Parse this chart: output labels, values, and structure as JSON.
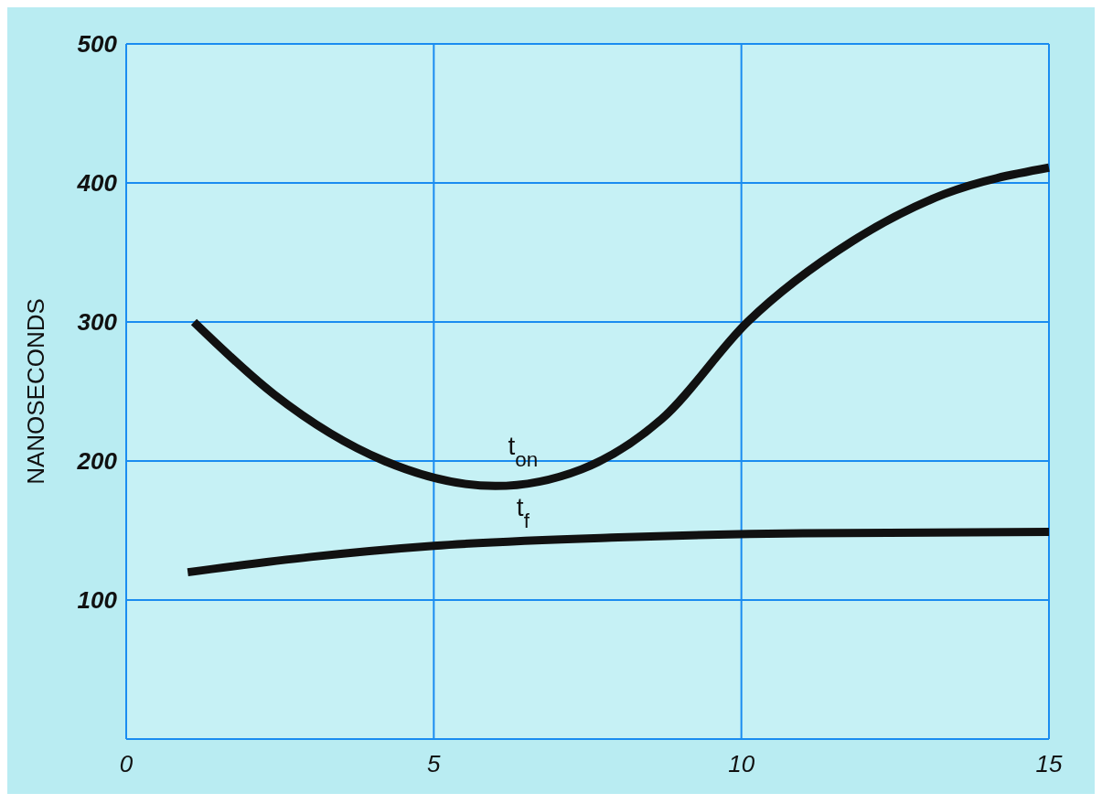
{
  "chart_data": {
    "type": "line",
    "ylabel": "NANOSECONDS",
    "xlim": [
      0,
      15
    ],
    "xticks": [
      0,
      5,
      10,
      15
    ],
    "ylim": [
      0,
      500
    ],
    "yticks": [
      100,
      200,
      300,
      400,
      500
    ],
    "grid": true,
    "line_style": "solid",
    "series": [
      {
        "name": "t$_{on}$",
        "color": "#111111",
        "x": [
          1.1,
          2.4,
          4.2,
          6.0,
          7.4,
          8.7,
          10.1,
          11.8,
          13.3,
          15
        ],
        "values": [
          300,
          248,
          200,
          182,
          194,
          230,
          300,
          358,
          392,
          411
        ]
      },
      {
        "name": "t$_{f}$",
        "color": "#111111",
        "x": [
          1,
          3,
          5,
          8,
          11,
          15
        ],
        "values": [
          120,
          131,
          139,
          145,
          148,
          149
        ]
      }
    ]
  }
}
